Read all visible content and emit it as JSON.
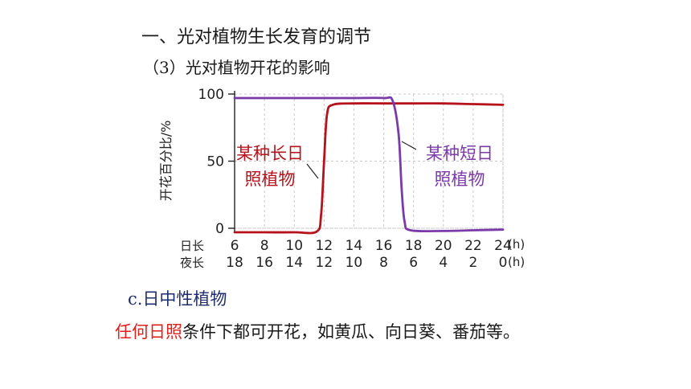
{
  "header": {
    "title": "一、光对植物生长发育的调节",
    "subtitle": "（3）光对植物开花的影响"
  },
  "chart_data": {
    "type": "line",
    "ylabel": "开花百分比/%",
    "ylim": [
      0,
      100
    ],
    "yticks": [
      0,
      50,
      100
    ],
    "xlim": [
      6,
      24
    ],
    "row_labels": [
      "日长",
      "夜长"
    ],
    "x": [
      6,
      8,
      10,
      12,
      14,
      16,
      18,
      20,
      22,
      24
    ],
    "day_ticks": [
      "6",
      "8",
      "10",
      "12",
      "14",
      "16",
      "18",
      "20",
      "22",
      "24"
    ],
    "night_ticks": [
      "18",
      "16",
      "14",
      "12",
      "10",
      "8",
      "6",
      "4",
      "2",
      "0"
    ],
    "unit": "(h)",
    "grid": true,
    "series": [
      {
        "name": "某种长日照植物",
        "label_lines": [
          "某种长日",
          "照植物"
        ],
        "color": "#b5121b",
        "x": [
          6,
          8,
          10,
          11.5,
          11.8,
          12.0,
          12.2,
          12.6,
          14,
          16,
          18,
          20,
          22,
          24
        ],
        "y": [
          -3,
          -3,
          -3,
          -2.5,
          10,
          50,
          85,
          92,
          93,
          93,
          93,
          93,
          92.5,
          92
        ]
      },
      {
        "name": "某种短日照植物",
        "label_lines": [
          "某种短日",
          "照植物"
        ],
        "color": "#7a3aa8",
        "x": [
          6,
          8,
          10,
          12,
          14,
          16,
          16.6,
          17.0,
          17.2,
          17.4,
          17.8,
          20,
          22,
          24
        ],
        "y": [
          97,
          97,
          97,
          97,
          97,
          97,
          95,
          70,
          30,
          5,
          -1.5,
          -2,
          -1.5,
          -1
        ]
      }
    ]
  },
  "section": {
    "label": "c.日中性植物",
    "highlight": "任何日照",
    "text": "条件下都可开花，如黄瓜、向日葵、番茄等。"
  }
}
